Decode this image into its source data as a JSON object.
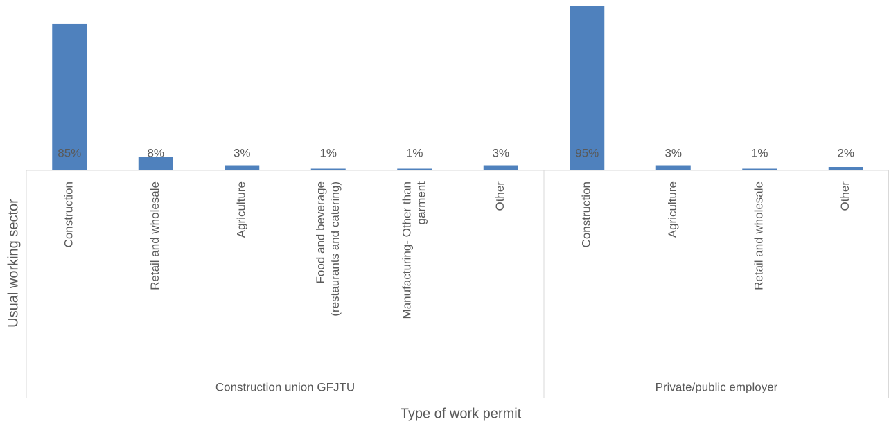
{
  "chart_data": {
    "type": "bar",
    "color": "#4f81bd",
    "x_label": "Type of work permit",
    "y_label": "Usual working sector",
    "groups": [
      {
        "name": "Construction union GFJTU",
        "categories": [
          "Construction",
          "Retail and wholesale",
          "Agriculture",
          "Food and beverage (restaurants and catering)",
          "Manufacturing- Other than garment",
          "Other"
        ],
        "values": [
          85,
          8,
          3,
          1,
          1,
          3
        ],
        "value_labels": [
          "85%",
          "8%",
          "3%",
          "1%",
          "1%",
          "3%"
        ]
      },
      {
        "name": "Private/public employer",
        "categories": [
          "Construction",
          "Agriculture",
          "Retail and wholesale",
          "Other"
        ],
        "values": [
          95,
          3,
          1,
          2
        ],
        "value_labels": [
          "95%",
          "3%",
          "1%",
          "2%"
        ]
      }
    ]
  }
}
